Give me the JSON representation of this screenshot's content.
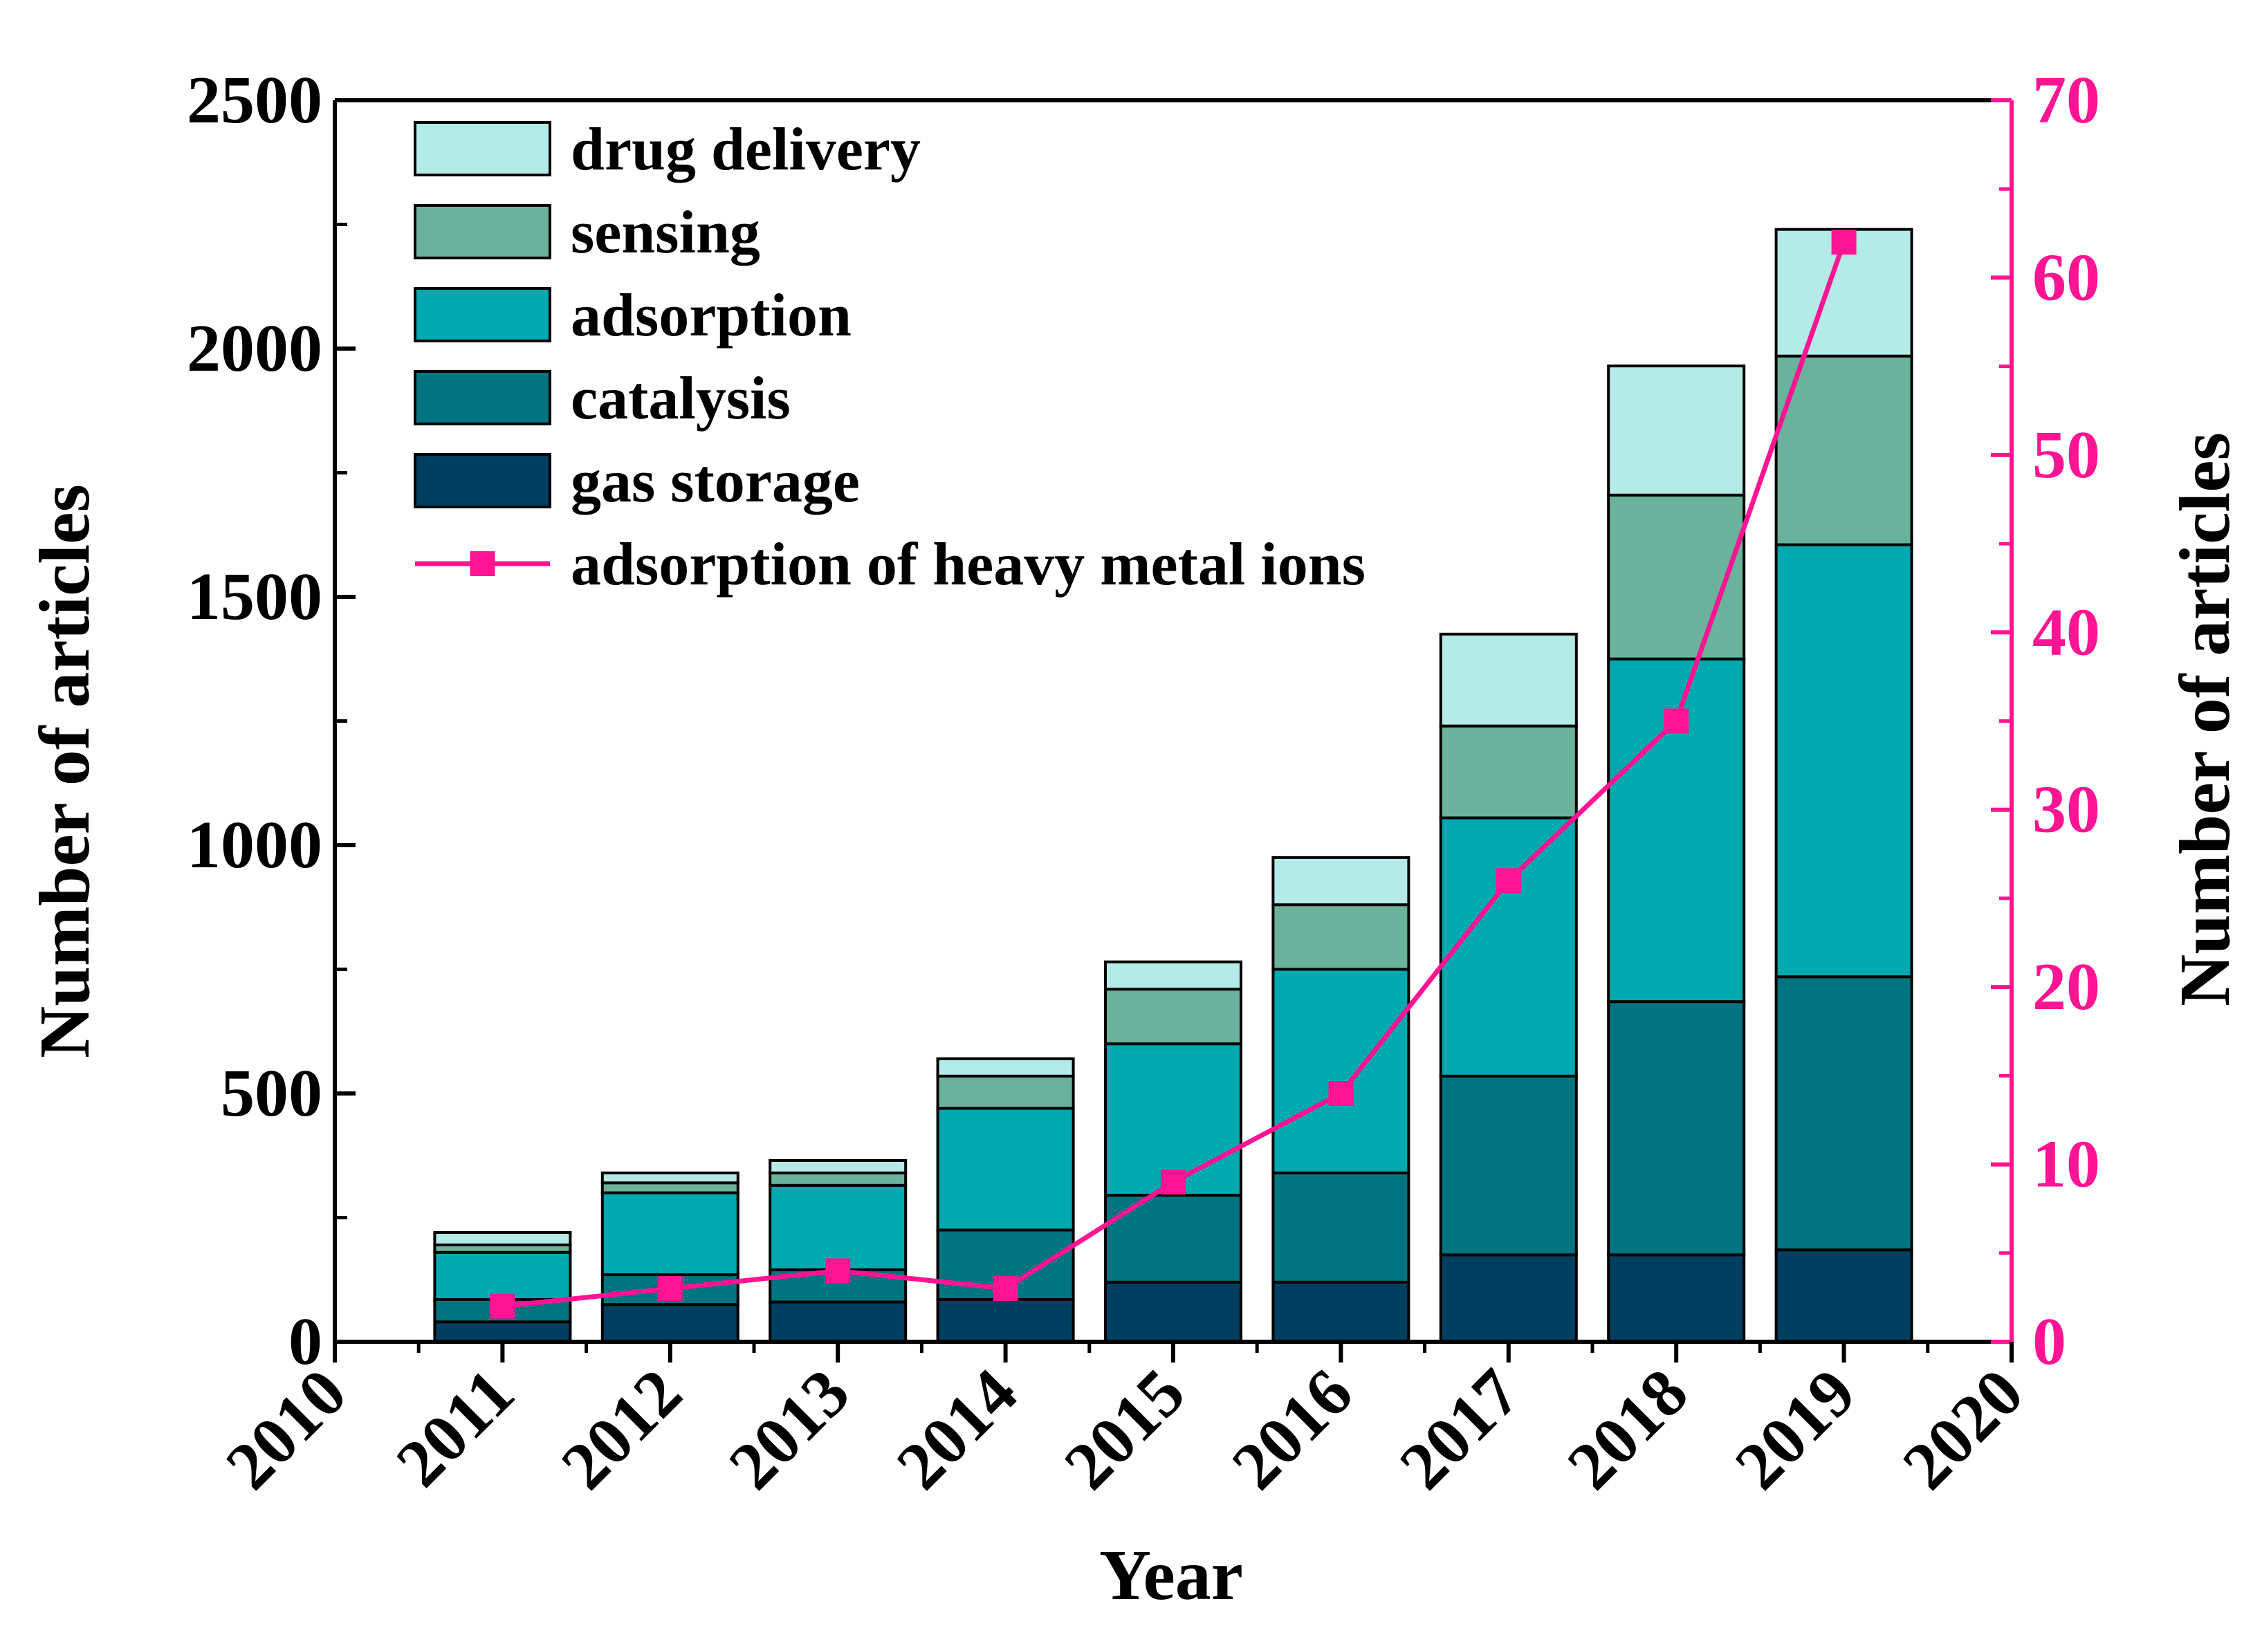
{
  "chart_data": {
    "type": "bar",
    "stacked": true,
    "x_categories": [
      "2011",
      "2012",
      "2013",
      "2014",
      "2015",
      "2016",
      "2017",
      "2018",
      "2019"
    ],
    "xlim": [
      2010,
      2020
    ],
    "x_ticks": [
      "2010",
      "2011",
      "2012",
      "2013",
      "2014",
      "2015",
      "2016",
      "2017",
      "2018",
      "2019",
      "2020"
    ],
    "xlabel": "Year",
    "ylabel_left": "Number of articles",
    "ylabel_right": "Number of articles",
    "ylim_left": [
      0,
      2500
    ],
    "ylim_right": [
      0,
      70
    ],
    "y_ticks_left": [
      "0",
      "500",
      "1000",
      "1500",
      "2000",
      "2500"
    ],
    "y_ticks_right": [
      "0",
      "10",
      "20",
      "30",
      "40",
      "50",
      "60",
      "70"
    ],
    "series": [
      {
        "name": "gas storage",
        "color": "#003f5f",
        "values": [
          40,
          75,
          80,
          85,
          120,
          120,
          175,
          175,
          185
        ]
      },
      {
        "name": "catalysis",
        "color": "#007480",
        "values": [
          45,
          60,
          65,
          140,
          175,
          220,
          360,
          510,
          550
        ]
      },
      {
        "name": "adsorption",
        "color": "#00a9b0",
        "values": [
          95,
          165,
          170,
          245,
          305,
          410,
          520,
          690,
          870
        ]
      },
      {
        "name": "sensing",
        "color": "#6ab29c",
        "values": [
          15,
          20,
          25,
          65,
          110,
          130,
          185,
          330,
          380
        ]
      },
      {
        "name": "drug delivery",
        "color": "#b4eae7",
        "values": [
          25,
          20,
          25,
          35,
          55,
          95,
          185,
          260,
          255
        ]
      }
    ],
    "line_series": {
      "name": "adsorption of heavy metal ions",
      "axis": "right",
      "color": "#ff1493",
      "marker": "square",
      "values": [
        2,
        3,
        4,
        3,
        9,
        14,
        26,
        35,
        62
      ]
    },
    "legend_order": [
      "drug delivery",
      "sensing",
      "adsorption",
      "catalysis",
      "gas storage",
      "adsorption of heavy metal ions"
    ],
    "legend_position": "top-left"
  }
}
